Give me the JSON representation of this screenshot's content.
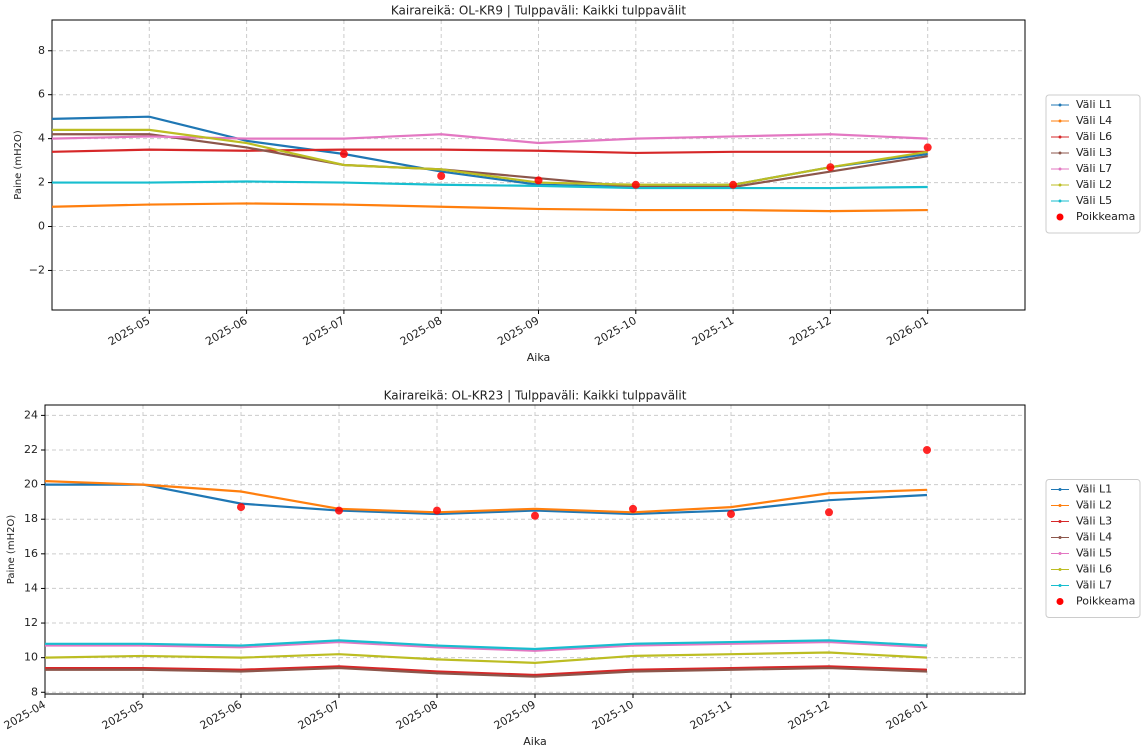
{
  "chart_data": [
    {
      "type": "line",
      "title": "Kairareikä: OL-KR9 | Tulppaväli: Kaikki tulppavälit",
      "x_label": "Aika",
      "y_label": "Paine (mH2O)",
      "x": [
        "2025-04",
        "2025-05",
        "2025-06",
        "2025-07",
        "2025-08",
        "2025-09",
        "2025-10",
        "2025-11",
        "2025-12",
        "2026-01"
      ],
      "xlim": [
        "2025-04",
        "2026-02"
      ],
      "xticks": [
        "2025-05",
        "2025-06",
        "2025-07",
        "2025-08",
        "2025-09",
        "2025-10",
        "2025-11",
        "2025-12",
        "2026-01"
      ],
      "ylim": [
        -3.8,
        9.4
      ],
      "yticks": [
        {
          "value": -2,
          "label": "−2"
        },
        0,
        2,
        4,
        6,
        8
      ],
      "grid": true,
      "legend": "outside right",
      "series": [
        {
          "name": "Väli L1",
          "color": "#1f77b4",
          "values": [
            4.9,
            5.0,
            3.9,
            3.3,
            2.5,
            1.9,
            1.8,
            1.9,
            2.7,
            3.3
          ]
        },
        {
          "name": "Väli L4",
          "color": "#ff7f0e",
          "values": [
            0.9,
            1.0,
            1.05,
            1.0,
            0.9,
            0.8,
            0.75,
            0.75,
            0.7,
            0.75
          ]
        },
        {
          "name": "Väli L6",
          "color": "#d62728",
          "values": [
            3.4,
            3.5,
            3.45,
            3.5,
            3.5,
            3.45,
            3.35,
            3.4,
            3.4,
            3.4
          ]
        },
        {
          "name": "Väli L3",
          "color": "#8c564b",
          "values": [
            4.2,
            4.2,
            3.6,
            2.8,
            2.6,
            2.2,
            1.8,
            1.8,
            2.5,
            3.2
          ]
        },
        {
          "name": "Väli L7",
          "color": "#e377c2",
          "values": [
            4.0,
            4.1,
            4.0,
            4.0,
            4.2,
            3.8,
            4.0,
            4.1,
            4.2,
            4.0
          ]
        },
        {
          "name": "Väli L2",
          "color": "#bcbd22",
          "values": [
            4.4,
            4.4,
            3.8,
            2.8,
            2.6,
            2.0,
            1.9,
            1.9,
            2.7,
            3.4
          ]
        },
        {
          "name": "Väli L5",
          "color": "#17becf",
          "values": [
            2.0,
            2.0,
            2.05,
            2.0,
            1.9,
            1.85,
            1.75,
            1.75,
            1.75,
            1.8
          ]
        },
        {
          "name": "Poikkeama",
          "color": "#ff0000",
          "type": "scatter",
          "values": [
            null,
            null,
            null,
            3.3,
            2.3,
            2.1,
            1.9,
            1.9,
            2.7,
            3.6
          ]
        }
      ]
    },
    {
      "type": "line",
      "title": "Kairareikä: OL-KR23 | Tulppaväli: Kaikki tulppavälit",
      "x_label": "Aika",
      "y_label": "Paine (mH2O)",
      "x": [
        "2025-04",
        "2025-05",
        "2025-06",
        "2025-07",
        "2025-08",
        "2025-09",
        "2025-10",
        "2025-11",
        "2025-12",
        "2026-01"
      ],
      "xlim": [
        "2025-04",
        "2026-02"
      ],
      "xticks": [
        "2025-04",
        "2025-05",
        "2025-06",
        "2025-07",
        "2025-08",
        "2025-09",
        "2025-10",
        "2025-11",
        "2025-12",
        "2026-01"
      ],
      "ylim": [
        7.9,
        24.6
      ],
      "yticks": [
        8,
        10,
        12,
        14,
        16,
        18,
        20,
        22,
        24
      ],
      "grid": true,
      "legend": "outside right",
      "series": [
        {
          "name": "Väli L1",
          "color": "#1f77b4",
          "values": [
            20.0,
            20.0,
            18.9,
            18.5,
            18.3,
            18.5,
            18.3,
            18.5,
            19.1,
            19.4
          ]
        },
        {
          "name": "Väli L2",
          "color": "#ff7f0e",
          "values": [
            20.2,
            20.0,
            19.6,
            18.6,
            18.4,
            18.6,
            18.4,
            18.7,
            19.5,
            19.7
          ]
        },
        {
          "name": "Väli L3",
          "color": "#d62728",
          "values": [
            9.4,
            9.4,
            9.3,
            9.5,
            9.2,
            9.0,
            9.3,
            9.4,
            9.5,
            9.3
          ]
        },
        {
          "name": "Väli L4",
          "color": "#8c564b",
          "values": [
            9.3,
            9.3,
            9.2,
            9.4,
            9.1,
            8.9,
            9.2,
            9.3,
            9.4,
            9.2
          ]
        },
        {
          "name": "Väli L5",
          "color": "#e377c2",
          "values": [
            10.7,
            10.7,
            10.6,
            10.9,
            10.6,
            10.4,
            10.7,
            10.8,
            10.9,
            10.6
          ]
        },
        {
          "name": "Väli L6",
          "color": "#bcbd22",
          "values": [
            10.0,
            10.1,
            10.0,
            10.2,
            9.9,
            9.7,
            10.1,
            10.2,
            10.3,
            10.0
          ]
        },
        {
          "name": "Väli L7",
          "color": "#17becf",
          "values": [
            10.8,
            10.8,
            10.7,
            11.0,
            10.7,
            10.5,
            10.8,
            10.9,
            11.0,
            10.7
          ]
        },
        {
          "name": "Poikkeama",
          "color": "#ff0000",
          "type": "scatter",
          "values": [
            null,
            null,
            18.7,
            18.5,
            18.5,
            18.2,
            18.6,
            18.3,
            18.4,
            22.0
          ]
        }
      ]
    }
  ]
}
